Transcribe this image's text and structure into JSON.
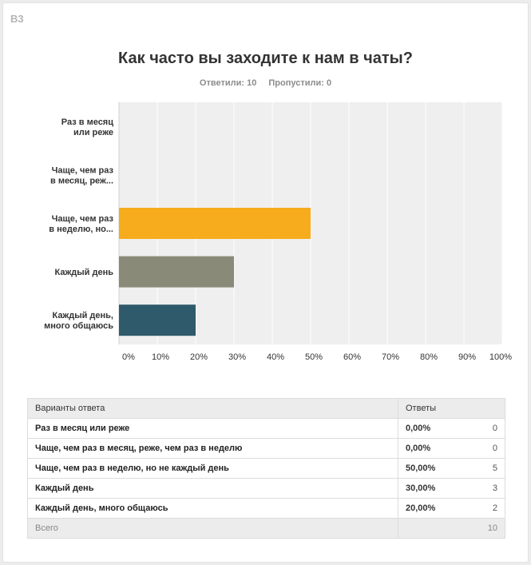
{
  "question": {
    "number": "В3",
    "title": "Как часто вы заходите к нам в чаты?",
    "answered_label": "Ответили: 10",
    "skipped_label": "Пропустили: 0"
  },
  "chart_data": {
    "type": "bar",
    "orientation": "horizontal",
    "categories": [
      [
        "Раз в месяц",
        "или реже"
      ],
      [
        "Чаще, чем раз",
        "в месяц, реж..."
      ],
      [
        "Чаще, чем раз",
        "в неделю, но..."
      ],
      [
        "Каждый день"
      ],
      [
        "Каждый день,",
        "много общаюсь"
      ]
    ],
    "values": [
      0,
      0,
      50,
      30,
      20
    ],
    "colors": [
      "#6b9bd2",
      "#7a5c9e",
      "#f6ac1c",
      "#8a8a78",
      "#2e5a6b"
    ],
    "xlim": [
      0,
      100
    ],
    "xticks": [
      "0%",
      "10%",
      "20%",
      "30%",
      "40%",
      "50%",
      "60%",
      "70%",
      "80%",
      "90%",
      "100%"
    ],
    "grid": true
  },
  "table": {
    "headers": {
      "choice": "Варианты ответа",
      "responses": "Ответы"
    },
    "rows": [
      {
        "choice": "Раз в месяц или реже",
        "percent": "0,00%",
        "count": "0"
      },
      {
        "choice": "Чаще, чем раз в месяц, реже, чем раз в неделю",
        "percent": "0,00%",
        "count": "0"
      },
      {
        "choice": "Чаще, чем раз в неделю, но не каждый день",
        "percent": "50,00%",
        "count": "5"
      },
      {
        "choice": "Каждый день",
        "percent": "30,00%",
        "count": "3"
      },
      {
        "choice": "Каждый день, много общаюсь",
        "percent": "20,00%",
        "count": "2"
      }
    ],
    "total_label": "Всего",
    "total_count": "10"
  }
}
